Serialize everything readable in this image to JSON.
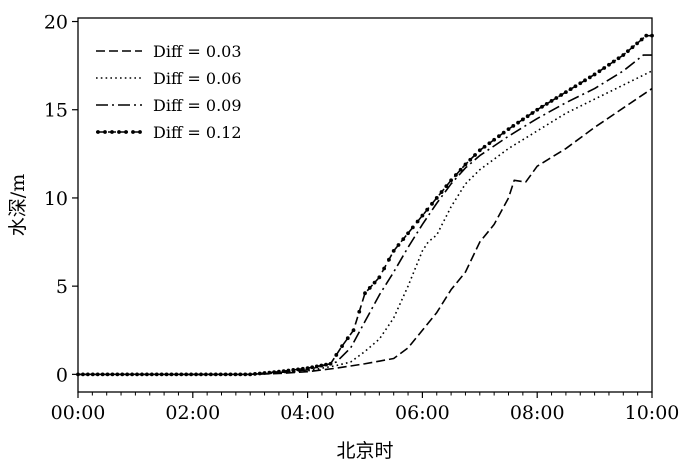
{
  "chart_data": {
    "type": "line",
    "xlabel": "北京时",
    "ylabel": "水深/m",
    "xlim": [
      0,
      10
    ],
    "ylim": [
      -1,
      20.2
    ],
    "xticks": [
      {
        "value": 0,
        "label": "00:00"
      },
      {
        "value": 2,
        "label": "02:00"
      },
      {
        "value": 4,
        "label": "04:00"
      },
      {
        "value": 6,
        "label": "06:00"
      },
      {
        "value": 8,
        "label": "08:00"
      },
      {
        "value": 10,
        "label": "10:00"
      }
    ],
    "yticks": [
      {
        "value": 0,
        "label": "0"
      },
      {
        "value": 5,
        "label": "5"
      },
      {
        "value": 10,
        "label": "10"
      },
      {
        "value": 15,
        "label": "15"
      },
      {
        "value": 20,
        "label": "20"
      }
    ],
    "grid": false,
    "legend_position": "top-left",
    "series": [
      {
        "name": "Diff = 0.03",
        "style": "dashed",
        "color": "#000000",
        "points": [
          [
            0,
            0
          ],
          [
            3,
            0
          ],
          [
            3.5,
            0.05
          ],
          [
            4,
            0.15
          ],
          [
            4.5,
            0.35
          ],
          [
            5,
            0.6
          ],
          [
            5.5,
            0.9
          ],
          [
            5.75,
            1.5
          ],
          [
            6,
            2.5
          ],
          [
            6.25,
            3.5
          ],
          [
            6.5,
            4.8
          ],
          [
            6.75,
            5.8
          ],
          [
            7,
            7.5
          ],
          [
            7.25,
            8.5
          ],
          [
            7.5,
            10
          ],
          [
            7.6,
            11
          ],
          [
            7.8,
            10.9
          ],
          [
            8,
            11.8
          ],
          [
            8.5,
            12.8
          ],
          [
            9,
            14
          ],
          [
            9.5,
            15.1
          ],
          [
            10,
            16.2
          ]
        ]
      },
      {
        "name": "Diff = 0.06",
        "style": "dotted",
        "color": "#000000",
        "points": [
          [
            0,
            0
          ],
          [
            3,
            0
          ],
          [
            3.5,
            0.08
          ],
          [
            4,
            0.2
          ],
          [
            4.5,
            0.5
          ],
          [
            4.75,
            0.7
          ],
          [
            5,
            1.3
          ],
          [
            5.25,
            2
          ],
          [
            5.5,
            3.2
          ],
          [
            5.75,
            5
          ],
          [
            6,
            7
          ],
          [
            6.1,
            7.5
          ],
          [
            6.25,
            7.9
          ],
          [
            6.5,
            9.5
          ],
          [
            6.75,
            10.8
          ],
          [
            7,
            11.6
          ],
          [
            7.5,
            12.8
          ],
          [
            8,
            13.8
          ],
          [
            8.5,
            14.8
          ],
          [
            9,
            15.6
          ],
          [
            9.5,
            16.4
          ],
          [
            10,
            17.2
          ]
        ]
      },
      {
        "name": "Diff = 0.09",
        "style": "dashdot",
        "color": "#000000",
        "points": [
          [
            0,
            0
          ],
          [
            3,
            0
          ],
          [
            3.5,
            0.1
          ],
          [
            4,
            0.25
          ],
          [
            4.5,
            0.7
          ],
          [
            4.75,
            1.5
          ],
          [
            5,
            3
          ],
          [
            5.25,
            4.5
          ],
          [
            5.5,
            5.8
          ],
          [
            5.75,
            7.2
          ],
          [
            6,
            8.5
          ],
          [
            6.25,
            9.7
          ],
          [
            6.5,
            10.8
          ],
          [
            6.75,
            11.7
          ],
          [
            7,
            12.4
          ],
          [
            7.5,
            13.5
          ],
          [
            8,
            14.5
          ],
          [
            8.5,
            15.4
          ],
          [
            9,
            16.2
          ],
          [
            9.5,
            17.2
          ],
          [
            9.85,
            18.1
          ],
          [
            10,
            18.1
          ]
        ]
      },
      {
        "name": "Diff = 0.12",
        "style": "dashed-dot-markers",
        "color": "#000000",
        "points": [
          [
            0,
            0
          ],
          [
            3,
            0
          ],
          [
            3.5,
            0.15
          ],
          [
            4,
            0.35
          ],
          [
            4.4,
            0.6
          ],
          [
            4.6,
            1.6
          ],
          [
            4.8,
            2.5
          ],
          [
            5,
            4.6
          ],
          [
            5.25,
            5.5
          ],
          [
            5.5,
            7
          ],
          [
            5.75,
            8
          ],
          [
            6,
            9
          ],
          [
            6.25,
            10
          ],
          [
            6.5,
            11
          ],
          [
            6.75,
            11.9
          ],
          [
            7,
            12.7
          ],
          [
            7.5,
            13.9
          ],
          [
            8,
            15
          ],
          [
            8.5,
            16
          ],
          [
            9,
            17
          ],
          [
            9.5,
            18.1
          ],
          [
            9.9,
            19.2
          ],
          [
            10,
            19.2
          ]
        ]
      }
    ]
  }
}
